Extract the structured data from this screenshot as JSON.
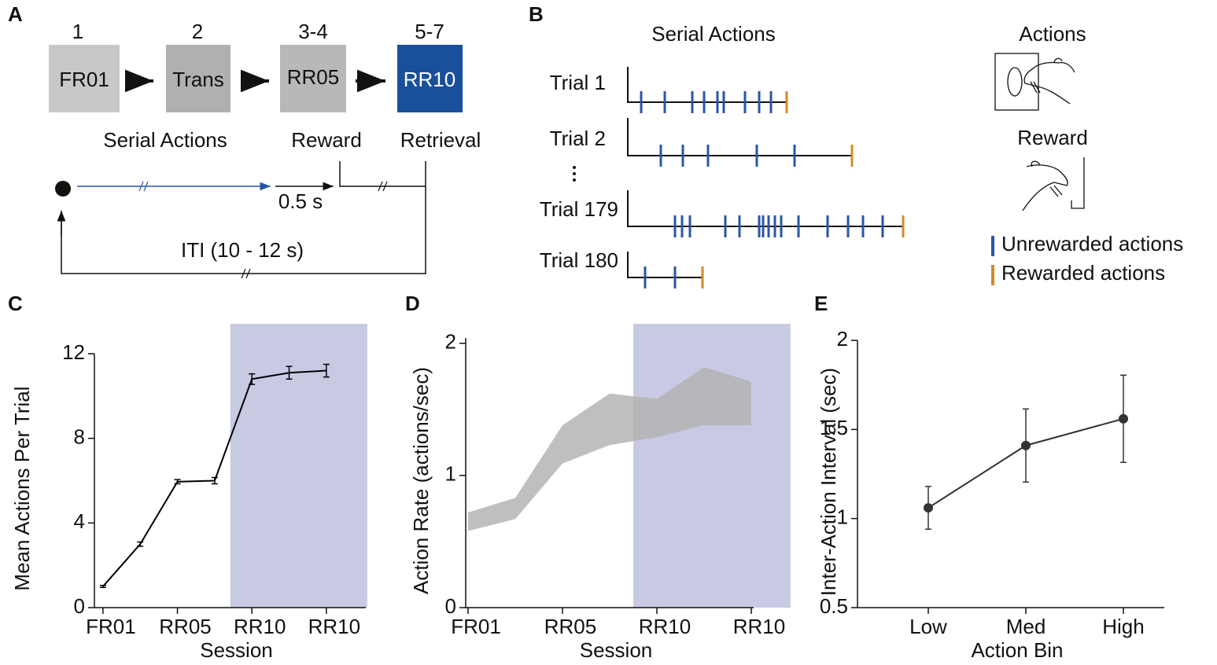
{
  "panels": {
    "A": {
      "letter": "A",
      "steps": [
        "1",
        "2",
        "3-4",
        "5-7"
      ],
      "stages": [
        "FR01",
        "Trans",
        "RR05",
        "RR10"
      ],
      "events": [
        "Serial Actions",
        "Reward",
        "Retrieval"
      ],
      "delay": "0.5 s",
      "iti": "ITI (10 - 12 s)"
    },
    "B": {
      "letter": "B",
      "title": "Serial Actions",
      "trials": [
        "Trial 1",
        "Trial 2",
        "Trial 179",
        "Trial 180"
      ],
      "icons": [
        "Actions",
        "Reward"
      ],
      "legend": [
        "Unrewarded actions",
        "Rewarded actions"
      ]
    }
  },
  "chart_data": [
    {
      "type": "line",
      "letter": "C",
      "x": [
        1,
        2,
        3,
        4,
        5,
        6,
        7
      ],
      "values": [
        1.0,
        3.0,
        5.95,
        6.0,
        10.8,
        11.1,
        11.2
      ],
      "errors": [
        0.05,
        0.1,
        0.1,
        0.15,
        0.25,
        0.3,
        0.3
      ],
      "color": "#000000",
      "xlim": [
        0.77,
        8.06
      ],
      "ylim": [
        0,
        12
      ],
      "yticks": [
        0,
        4,
        8,
        12
      ],
      "xticks": [
        {
          "value": 1,
          "label": "FR01"
        },
        {
          "value": 3,
          "label": "RR05"
        },
        {
          "value": 5,
          "label": "RR10"
        },
        {
          "value": 7,
          "label": "RR10"
        }
      ],
      "xlabel": "Session",
      "ylabel": "Mean Actions Per Trial",
      "shaded_x": [
        4.42,
        8.1
      ],
      "shade_color": "#c8cae4"
    },
    {
      "type": "area",
      "letter": "D",
      "x": [
        1,
        2,
        3,
        4,
        5,
        6,
        7
      ],
      "low": [
        0.58,
        0.67,
        1.09,
        1.23,
        1.29,
        1.38,
        1.38
      ],
      "high": [
        0.72,
        0.83,
        1.38,
        1.62,
        1.58,
        1.82,
        1.71
      ],
      "color": "#b4b4b4",
      "xlim": [
        0.95,
        7.05
      ],
      "ylim": [
        0,
        2.04
      ],
      "yticks": [
        0,
        1,
        2
      ],
      "xticks": [
        {
          "value": 1,
          "label": "FR01"
        },
        {
          "value": 3,
          "label": "RR05"
        },
        {
          "value": 5,
          "label": "RR10"
        },
        {
          "value": 7,
          "label": "RR10"
        }
      ],
      "xlabel": "Session",
      "ylabel": "Action Rate (actions/sec)",
      "shaded_x": [
        4.5,
        7.83
      ],
      "shade_color": "#c8cae4"
    },
    {
      "type": "line",
      "letter": "E",
      "categories": [
        "Low",
        "Med",
        "High"
      ],
      "values": [
        1.06,
        1.41,
        1.56
      ],
      "errors": [
        0.12,
        0.205,
        0.245
      ],
      "marker": true,
      "color": "#333333",
      "ylim": [
        0.5,
        2
      ],
      "yticks": [
        0.5,
        1,
        1.5,
        2
      ],
      "xlabel": "Action Bin",
      "ylabel": "Inter-Action Interval (sec)"
    }
  ]
}
